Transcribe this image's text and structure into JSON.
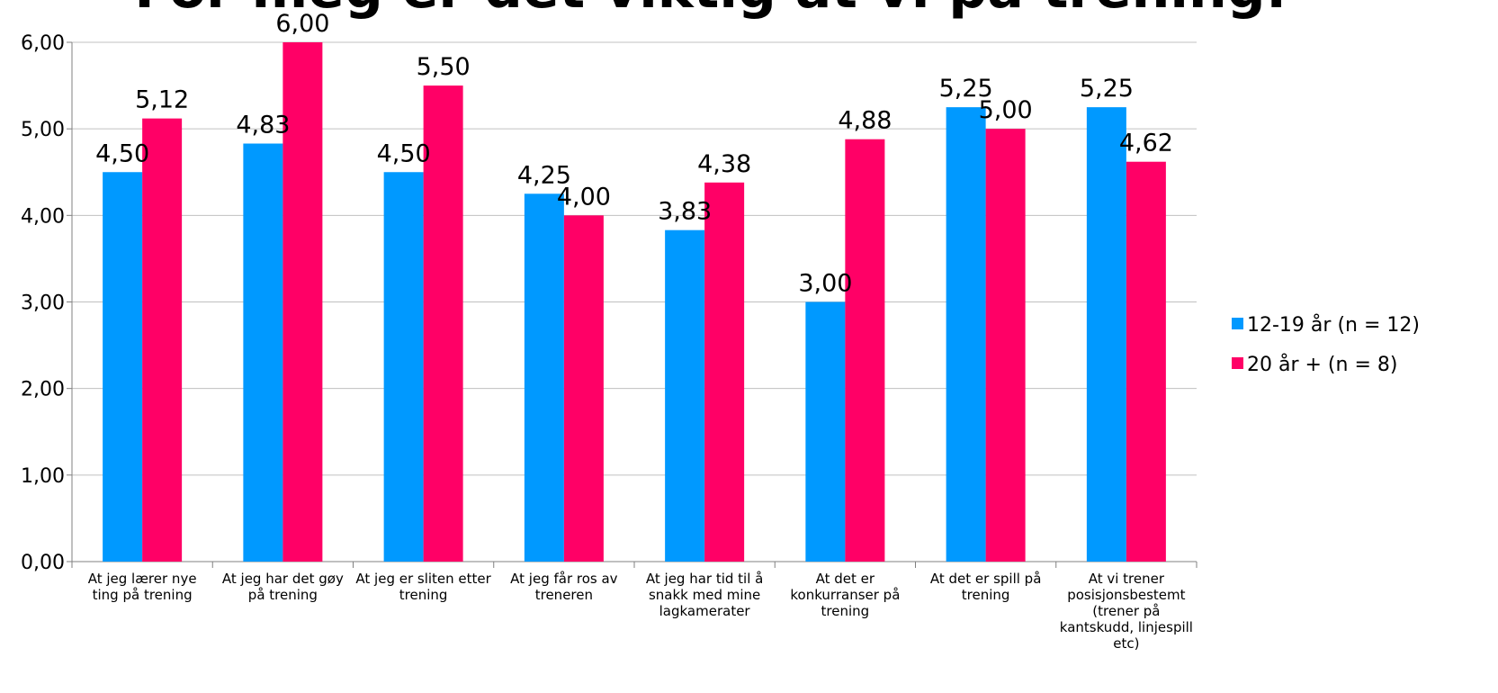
{
  "chart_data": {
    "type": "bar",
    "title": "For meg er det viktig at vi på trening:",
    "categories": [
      [
        "At jeg lærer nye",
        "ting på trening"
      ],
      [
        "At jeg har det gøy",
        "på trening"
      ],
      [
        "At jeg er sliten etter",
        "trening"
      ],
      [
        "At jeg får ros av",
        "treneren"
      ],
      [
        "At jeg har tid til å",
        "snakk med mine",
        "lagkamerater"
      ],
      [
        "At det er",
        "konkurranser på",
        "trening"
      ],
      [
        "At det er spill på",
        "trening"
      ],
      [
        "At vi trener",
        "posisjonsbestemt",
        "(trener på",
        "kantskudd, linjespill",
        "etc)"
      ]
    ],
    "series": [
      {
        "name": "12-19 år (n = 12)",
        "color": "#0099ff",
        "values": [
          4.5,
          4.83,
          4.5,
          4.25,
          3.83,
          3.0,
          5.25,
          5.25
        ],
        "labels": [
          "4,50",
          "4,83",
          "4,50",
          "4,25",
          "3,83",
          "3,00",
          "5,25",
          "5,25"
        ]
      },
      {
        "name": "20 år + (n = 8)",
        "color": "#ff0066",
        "values": [
          5.12,
          6.0,
          5.5,
          4.0,
          4.38,
          4.88,
          5.0,
          4.62
        ],
        "labels": [
          "5,12",
          "6,00",
          "5,50",
          "4,00",
          "4,38",
          "4,88",
          "5,00",
          "4,62"
        ]
      }
    ],
    "ylim": [
      0,
      6
    ],
    "yticks": [
      0,
      1,
      2,
      3,
      4,
      5,
      6
    ],
    "ytick_labels": [
      "0,00",
      "1,00",
      "2,00",
      "3,00",
      "4,00",
      "5,00",
      "6,00"
    ],
    "grid": true,
    "legend_position": "right"
  }
}
